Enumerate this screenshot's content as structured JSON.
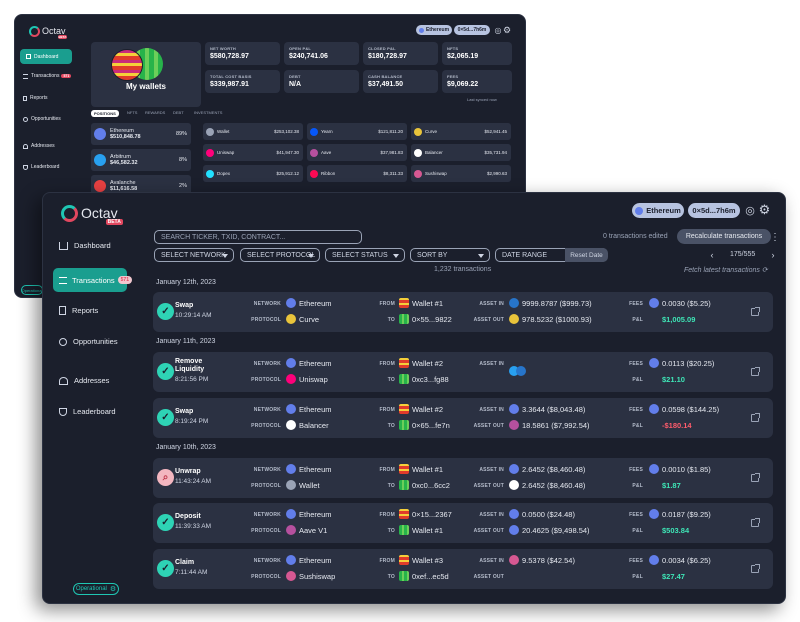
{
  "back": {
    "brand": {
      "name": "Octav",
      "badge": "BETA"
    },
    "network_chip": "Ethereum",
    "address_chip": "0×5d...7h6m",
    "sidebar": [
      {
        "label": "Dashboard"
      },
      {
        "label": "Transactions",
        "badge": "571"
      },
      {
        "label": "Reports"
      },
      {
        "label": "Opportunities"
      },
      {
        "label": "Addresses"
      },
      {
        "label": "Leaderboard"
      }
    ],
    "operational": "Operational",
    "wallet_card": "My wallets",
    "stats": [
      {
        "label": "NET WORTH",
        "value": "$580,728.97"
      },
      {
        "label": "OPEN P&L",
        "value": "$240,741.06"
      },
      {
        "label": "CLOSED P&L",
        "value": "$180,728.97"
      },
      {
        "label": "NFTS",
        "value": "$2,065.19"
      },
      {
        "label": "TOTAL COST BASIS",
        "value": "$339,987.91"
      },
      {
        "label": "DEBT",
        "value": "N/A"
      },
      {
        "label": "CASH BALANCE",
        "value": "$37,491.50"
      },
      {
        "label": "FEES",
        "value": "$9,069.22"
      }
    ],
    "last_synced": "Last synced now",
    "tabs": [
      "POSITIONS",
      "NFTS",
      "REWARDS",
      "DEBT",
      "INVESTMENTS"
    ],
    "chains": [
      {
        "name": "Ethereum",
        "value": "$510,848.78",
        "pct": "89%",
        "color": "#627eea"
      },
      {
        "name": "Arbitrum",
        "value": "$46,582.32",
        "pct": "8%",
        "color": "#28a0f0"
      },
      {
        "name": "Avalanche",
        "value": "$11,616.58",
        "pct": "2%",
        "color": "#e84142"
      }
    ],
    "protocols": [
      {
        "name": "Wallet",
        "amount": "$253,102.38",
        "color": "#9aa3b6"
      },
      {
        "name": "Yearn",
        "amount": "$121,811.20",
        "color": "#0657f9"
      },
      {
        "name": "Curve",
        "amount": "$52,941.45",
        "color": "#e9c43b"
      },
      {
        "name": "Uniswap",
        "amount": "$41,947.30",
        "color": "#ff007a"
      },
      {
        "name": "Aave",
        "amount": "$37,981.83",
        "color": "#b6509e"
      },
      {
        "name": "Balancer",
        "amount": "$35,731.94",
        "color": "#ffffff"
      },
      {
        "name": "Dopex",
        "amount": "$25,912.12",
        "color": "#22e1ff"
      },
      {
        "name": "Ribbon",
        "amount": "$8,311.33",
        "color": "#fc0a54"
      },
      {
        "name": "Sushiswap",
        "amount": "$2,990.63",
        "color": "#d65892"
      }
    ]
  },
  "front": {
    "brand": {
      "name": "Octav",
      "badge": "BETA"
    },
    "network_chip": "Ethereum",
    "address_chip": "0×5d...7h6m",
    "sidebar": [
      {
        "label": "Dashboard"
      },
      {
        "label": "Transactions",
        "badge": "571"
      },
      {
        "label": "Reports"
      },
      {
        "label": "Opportunities"
      },
      {
        "label": "Addresses"
      },
      {
        "label": "Leaderboard"
      }
    ],
    "operational": "Operational",
    "search_placeholder": "SEARCH TICKER, TXID, CONTRACT...",
    "edited": "0 transactions edited",
    "recalc": "Recalculate transactions",
    "filters": [
      "SELECT NETWORK",
      "SELECT PROTOCOL",
      "SELECT STATUS",
      "SORT BY"
    ],
    "date_range": "DATE RANGE",
    "reset": "Reset Date",
    "page": "175/555",
    "count": "1,232 transactions",
    "fetch": "Fetch latest transactions",
    "labels": {
      "network": "NETWORK",
      "protocol": "PROTOCOL",
      "from": "FROM",
      "to": "TO",
      "asset_in": "ASSET IN",
      "asset_out": "ASSET OUT",
      "fees": "FEES",
      "pnl": "P&L"
    },
    "dates": [
      "January 12th, 2023",
      "January 11th, 2023",
      "January 10th, 2023"
    ],
    "transactions": [
      {
        "type": "Swap",
        "time": "10:29:14 AM",
        "status": "check",
        "network": "Ethereum",
        "protocol": "Curve",
        "protocol_color": "#e9c43b",
        "from": "Wallet #1",
        "to": "0×55...9822",
        "asset_in": "9999.8787 ($999.73)",
        "asset_in_color": "#2775ca",
        "asset_out": "978.5232 ($1000.93)",
        "asset_out_color": "#e9c43b",
        "fees": "0.0030 ($5.25)",
        "pnl": "$1,005.09",
        "pnl_color": "#3ee6b7"
      },
      {
        "type": "Remove Liquidity",
        "time": "8:21:56 PM",
        "status": "check",
        "network": "Ethereum",
        "protocol": "Uniswap",
        "protocol_color": "#ff007a",
        "from": "Wallet #2",
        "to": "0xc3...fg88",
        "asset_in": "",
        "asset_in_color": "#28a0f0",
        "asset_out": "",
        "asset_out_color": "",
        "fees": "0.0113 ($20.25)",
        "pnl": "$21.10",
        "pnl_color": "#3ee6b7"
      },
      {
        "type": "Swap",
        "time": "8:19:24 PM",
        "status": "check",
        "network": "Ethereum",
        "protocol": "Balancer",
        "protocol_color": "#ffffff",
        "from": "Wallet #2",
        "to": "0×65...fe7n",
        "asset_in": "3.3644 ($8,043.48)",
        "asset_in_color": "#627eea",
        "asset_out": "18.5861 ($7,992.54)",
        "asset_out_color": "#b6509e",
        "fees": "0.0598 ($144.25)",
        "pnl": "-$180.14",
        "pnl_color": "#ff5c6c"
      },
      {
        "type": "Unwrap",
        "time": "11:43:24 AM",
        "status": "search",
        "network": "Ethereum",
        "protocol": "Wallet",
        "protocol_color": "#9aa3b6",
        "from": "Wallet #1",
        "to": "0xc0...6cc2",
        "asset_in": "2.6452 ($8,460.48)",
        "asset_in_color": "#627eea",
        "asset_out": "2.6452 ($8,460.48)",
        "asset_out_color": "#ffffff",
        "fees": "0.0010 ($1.85)",
        "pnl": "$1.87",
        "pnl_color": "#3ee6b7"
      },
      {
        "type": "Deposit",
        "time": "11:39:33 AM",
        "status": "check",
        "network": "Ethereum",
        "protocol": "Aave V1",
        "protocol_color": "#b6509e",
        "from": "0×15...2367",
        "to": "Wallet #1",
        "asset_in": "0.0500 ($24.48)",
        "asset_in_color": "#627eea",
        "asset_out": "20.4625 ($9,498.54)",
        "asset_out_color": "#627eea",
        "fees": "0.0187 ($9.25)",
        "pnl": "$503.84",
        "pnl_color": "#3ee6b7"
      },
      {
        "type": "Claim",
        "time": "7:11:44 AM",
        "status": "check",
        "network": "Ethereum",
        "protocol": "Sushiswap",
        "protocol_color": "#d65892",
        "from": "Wallet #3",
        "to": "0xef...ec5d",
        "asset_in": "9.5378 ($42.54)",
        "asset_in_color": "#d65892",
        "asset_out": "",
        "asset_out_color": "",
        "fees": "0.0034 ($6.25)",
        "pnl": "$27.47",
        "pnl_color": "#3ee6b7"
      }
    ]
  }
}
